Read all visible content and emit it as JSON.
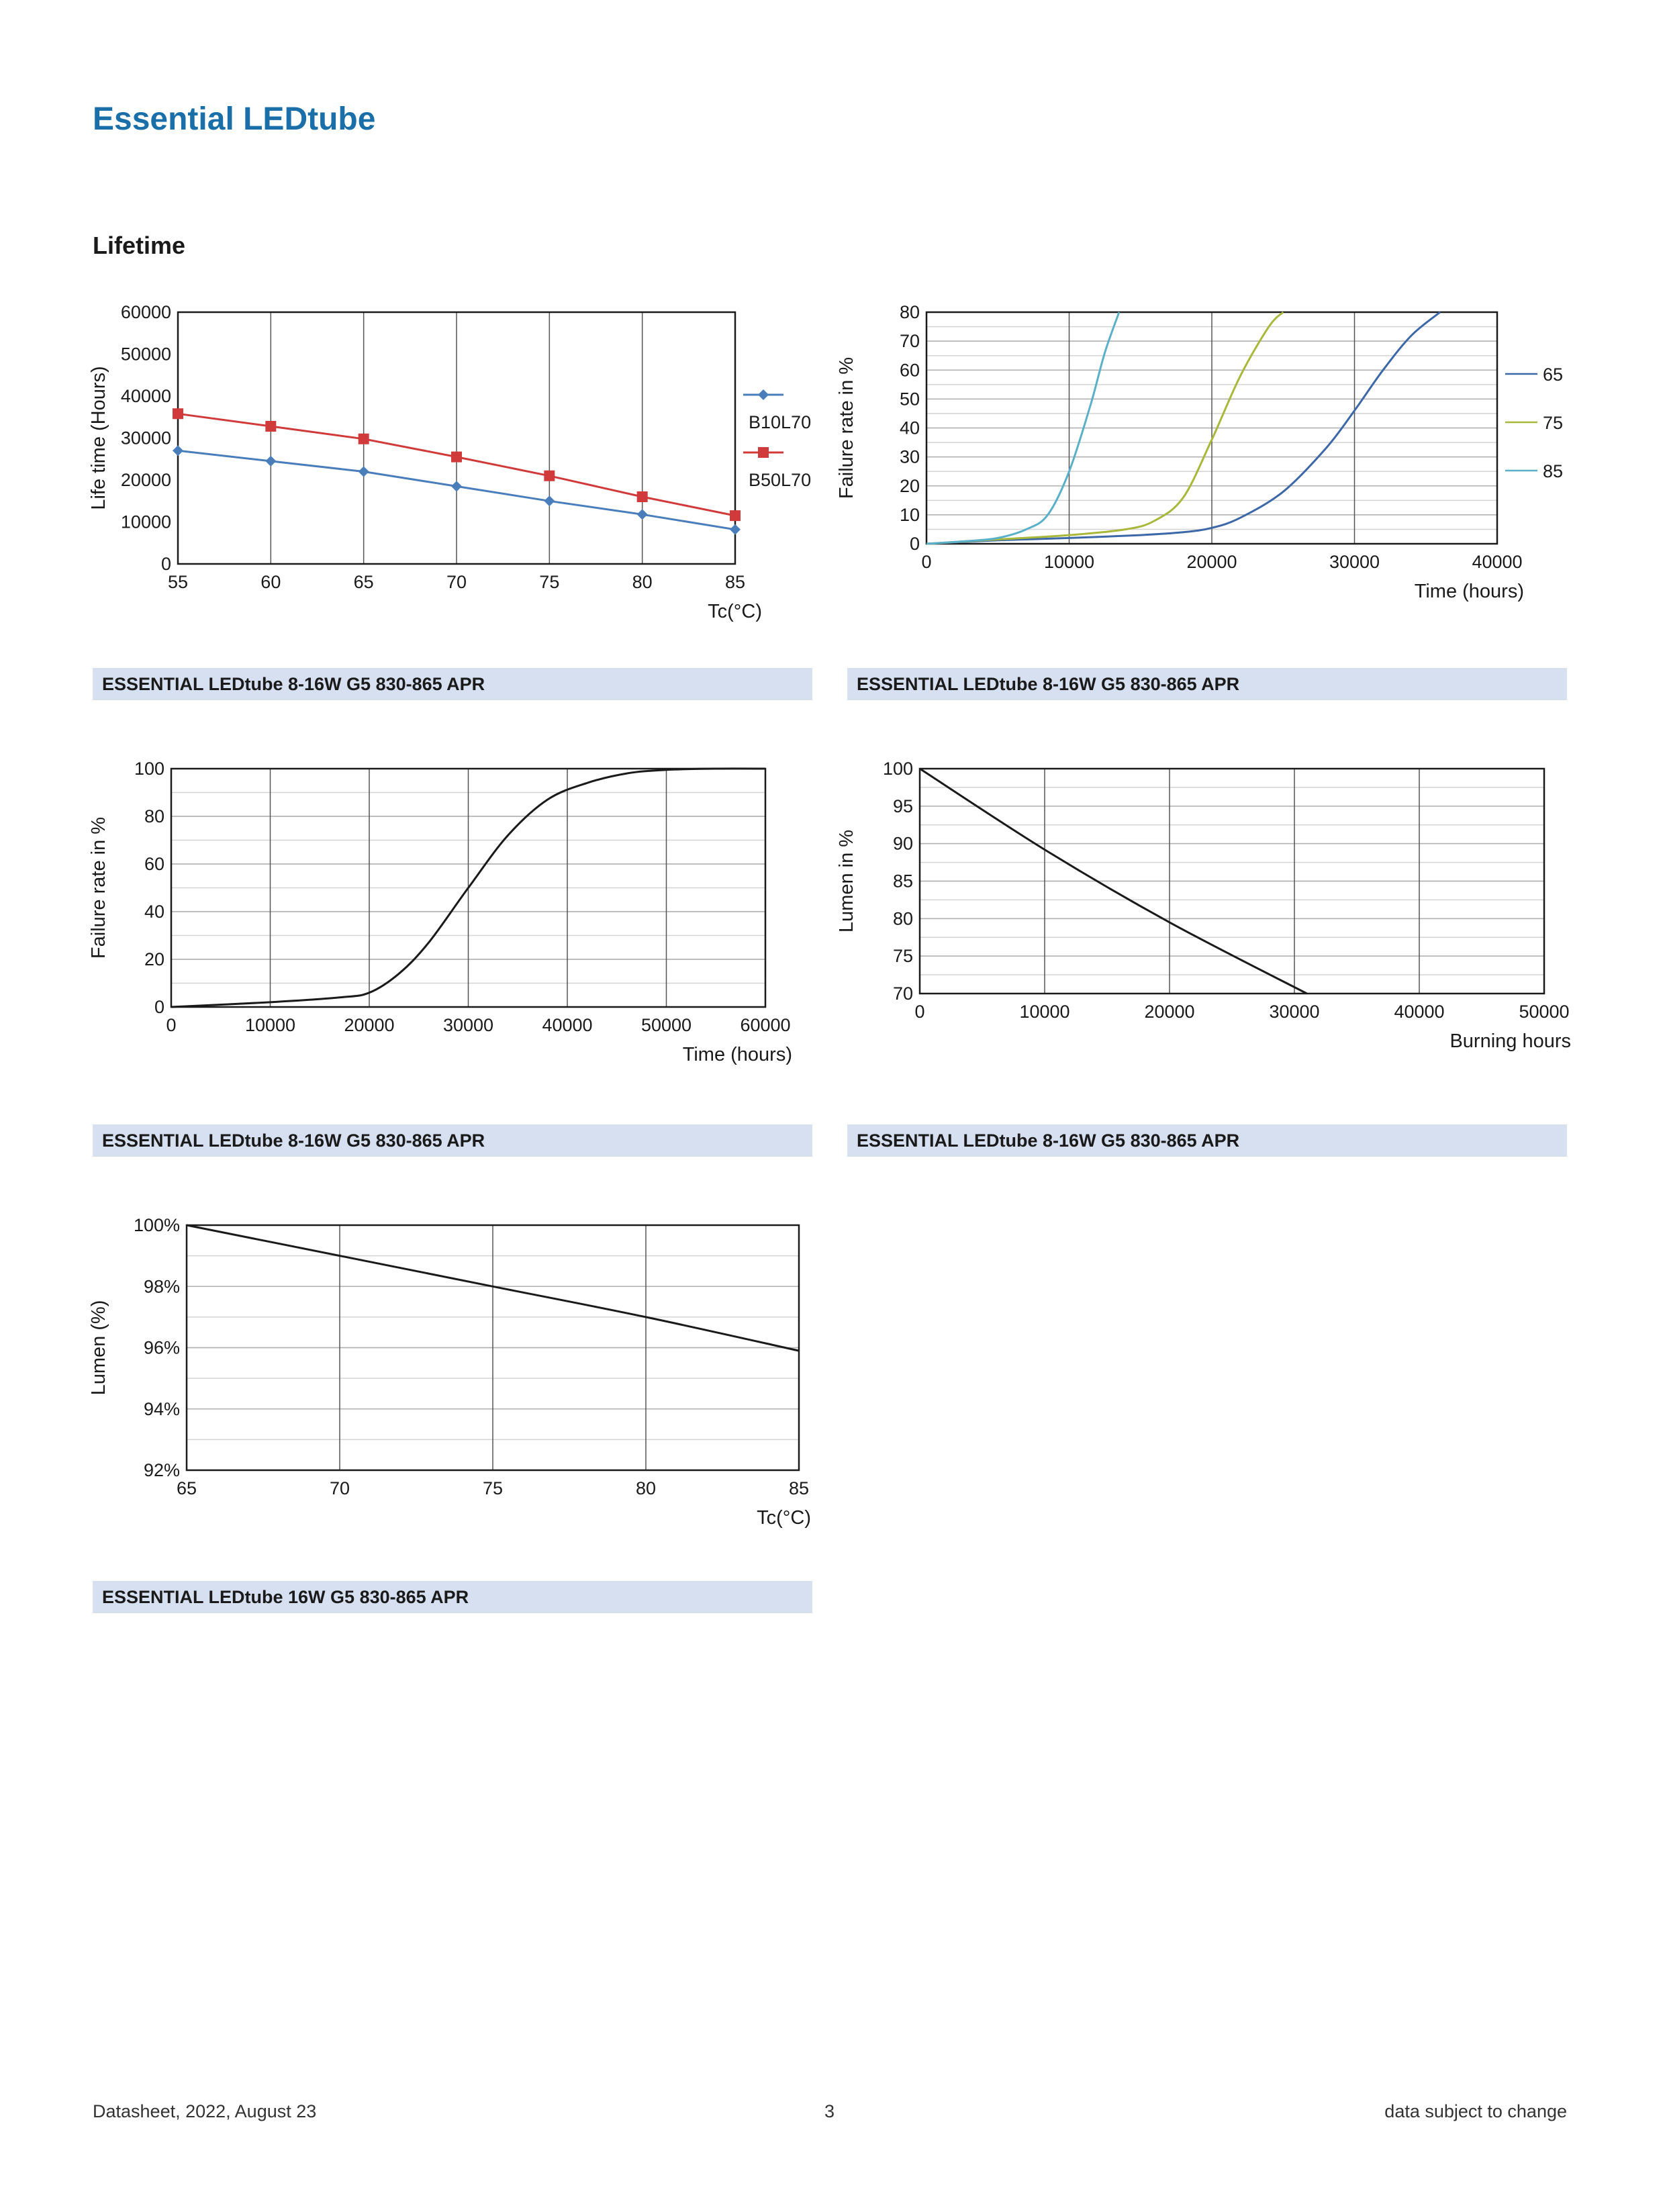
{
  "page": {
    "title": "Essential LEDtube",
    "section": "Lifetime"
  },
  "captions": {
    "c1": "ESSENTIAL LEDtube 8-16W G5 830-865 APR",
    "c2": "ESSENTIAL LEDtube 8-16W G5 830-865 APR",
    "c3": "ESSENTIAL LEDtube 8-16W G5 830-865 APR",
    "c4": "ESSENTIAL LEDtube 8-16W G5 830-865 APR",
    "c5": "ESSENTIAL LEDtube 16W G5 830-865 APR"
  },
  "footer": {
    "left": "Datasheet, 2022, August 23",
    "center": "3",
    "right": "data subject to change"
  },
  "chart_data": [
    {
      "type": "line",
      "xlabel": "Tc(°C)",
      "ylabel": "Life time (Hours)",
      "xlim": [
        55,
        85
      ],
      "ylim": [
        0,
        60000
      ],
      "xticks": [
        55,
        60,
        65,
        70,
        75,
        80,
        85
      ],
      "yticks": [
        0,
        10000,
        20000,
        30000,
        40000,
        50000,
        60000
      ],
      "grid": "vertical",
      "legend": "right",
      "series": [
        {
          "name": "B10L70",
          "color": "#4a7ebb",
          "marker": "diamond",
          "points": [
            [
              55,
              27000
            ],
            [
              60,
              24500
            ],
            [
              65,
              22000
            ],
            [
              70,
              18500
            ],
            [
              75,
              15000
            ],
            [
              80,
              11800
            ],
            [
              85,
              8200
            ]
          ]
        },
        {
          "name": "B50L70",
          "color": "#d03a3a",
          "marker": "square",
          "points": [
            [
              55,
              35800
            ],
            [
              60,
              32800
            ],
            [
              65,
              29800
            ],
            [
              70,
              25500
            ],
            [
              75,
              21000
            ],
            [
              80,
              16000
            ],
            [
              85,
              11500
            ]
          ]
        }
      ]
    },
    {
      "type": "line",
      "xlabel": "Time (hours)",
      "ylabel": "Failure rate in %",
      "xlim": [
        0,
        40000
      ],
      "ylim": [
        0,
        80
      ],
      "xticks": [
        0,
        10000,
        20000,
        30000,
        40000
      ],
      "yticks": [
        0,
        10,
        20,
        30,
        40,
        50,
        60,
        70,
        80
      ],
      "grid": "both",
      "legend": "right",
      "series": [
        {
          "name": "65",
          "color": "#3d68a8",
          "points": [
            [
              0,
              0
            ],
            [
              5000,
              1.2
            ],
            [
              10000,
              2
            ],
            [
              15000,
              3
            ],
            [
              18000,
              4
            ],
            [
              20000,
              5.5
            ],
            [
              22000,
              9
            ],
            [
              25000,
              18
            ],
            [
              28000,
              33
            ],
            [
              30000,
              46
            ],
            [
              32000,
              60
            ],
            [
              34000,
              72
            ],
            [
              36000,
              80
            ]
          ]
        },
        {
          "name": "75",
          "color": "#a8b83a",
          "points": [
            [
              0,
              0
            ],
            [
              5000,
              1.5
            ],
            [
              10000,
              3
            ],
            [
              14000,
              5
            ],
            [
              16000,
              8
            ],
            [
              18000,
              16
            ],
            [
              20000,
              36
            ],
            [
              22000,
              58
            ],
            [
              24000,
              75
            ],
            [
              25000,
              80
            ]
          ]
        },
        {
          "name": "85",
          "color": "#5ab0c8",
          "points": [
            [
              0,
              0
            ],
            [
              3000,
              1
            ],
            [
              5000,
              2
            ],
            [
              7000,
              5
            ],
            [
              8500,
              10
            ],
            [
              10000,
              25
            ],
            [
              11500,
              48
            ],
            [
              12500,
              66
            ],
            [
              13500,
              80
            ]
          ]
        }
      ]
    },
    {
      "type": "line",
      "xlabel": "Time (hours)",
      "ylabel": "Failure rate in %",
      "xlim": [
        0,
        60000
      ],
      "ylim": [
        0,
        100
      ],
      "xticks": [
        0,
        10000,
        20000,
        30000,
        40000,
        50000,
        60000
      ],
      "yticks": [
        0,
        20,
        40,
        60,
        80,
        100
      ],
      "grid": "both",
      "series": [
        {
          "name": "",
          "color": "#1a1a1a",
          "points": [
            [
              0,
              0
            ],
            [
              10000,
              2
            ],
            [
              17000,
              4
            ],
            [
              20000,
              6
            ],
            [
              23000,
              14
            ],
            [
              26000,
              27
            ],
            [
              30000,
              50
            ],
            [
              34000,
              72
            ],
            [
              38000,
              87
            ],
            [
              42000,
              94
            ],
            [
              46000,
              98
            ],
            [
              50000,
              99.5
            ],
            [
              55000,
              100
            ],
            [
              60000,
              100
            ]
          ]
        }
      ]
    },
    {
      "type": "line",
      "xlabel": "Burning hours",
      "ylabel": "Lumen in %",
      "xlim": [
        0,
        50000
      ],
      "ylim": [
        70,
        100
      ],
      "xticks": [
        0,
        10000,
        20000,
        30000,
        40000,
        50000
      ],
      "yticks": [
        70,
        75,
        80,
        85,
        90,
        95,
        100
      ],
      "grid": "both",
      "series": [
        {
          "name": "",
          "color": "#1a1a1a",
          "points": [
            [
              0,
              100
            ],
            [
              10000,
              89.2
            ],
            [
              20000,
              79.5
            ],
            [
              31000,
              70
            ]
          ]
        }
      ]
    },
    {
      "type": "line",
      "xlabel": "Tc(°C)",
      "ylabel": "Lumen (%)",
      "xlim": [
        65,
        85
      ],
      "ylim": [
        92,
        100
      ],
      "xticks": [
        65,
        70,
        75,
        80,
        85
      ],
      "yticks": [
        "92%",
        "94%",
        "96%",
        "98%",
        "100%"
      ],
      "grid": "both",
      "series": [
        {
          "name": "",
          "color": "#1a1a1a",
          "points": [
            [
              65,
              100
            ],
            [
              70,
              99
            ],
            [
              75,
              98
            ],
            [
              80,
              97
            ],
            [
              85,
              95.9
            ]
          ]
        }
      ]
    }
  ]
}
